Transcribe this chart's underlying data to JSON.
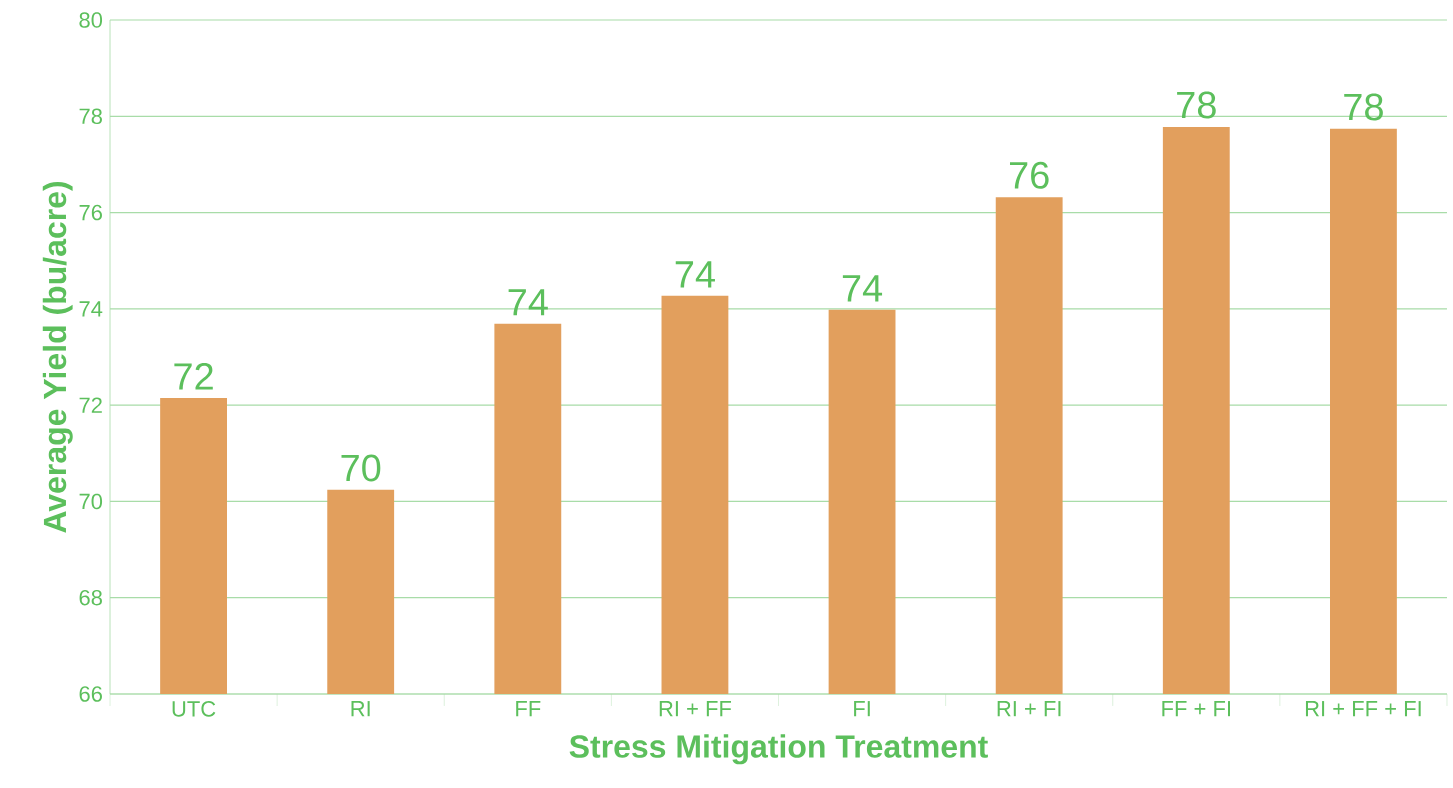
{
  "chart_data": {
    "type": "bar",
    "xlabel": "Stress Mitigation Treatment",
    "ylabel": "Average Yield (bu/acre)",
    "categories": [
      "UTC",
      "RI",
      "FF",
      "RI + FF",
      "FI",
      "RI + FI",
      "FF + FI",
      "RI + FF + FI"
    ],
    "values": [
      72.15,
      70.24,
      73.69,
      74.27,
      73.98,
      76.32,
      77.78,
      77.74
    ],
    "value_labels": [
      "72",
      "70",
      "74",
      "74",
      "74",
      "76",
      "78",
      "78"
    ],
    "color": "#e29f5d",
    "ylim": [
      66,
      80
    ],
    "yticks": [
      66,
      68,
      70,
      72,
      74,
      76,
      78,
      80
    ],
    "grid": "y"
  }
}
